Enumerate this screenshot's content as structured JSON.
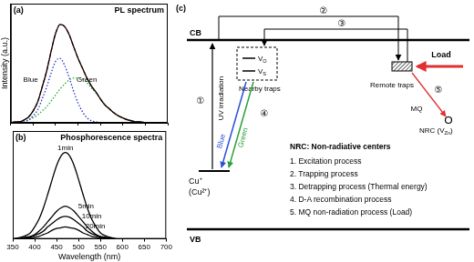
{
  "chart_data": [
    {
      "type": "line",
      "title": "PL spectrum",
      "annotations": [
        "(a)"
      ],
      "ylabel": "Intensity (a.u.)",
      "x": [
        350,
        360,
        370,
        380,
        390,
        400,
        410,
        420,
        430,
        440,
        450,
        460,
        470,
        480,
        490,
        500,
        510,
        520,
        530,
        540,
        550,
        560,
        570,
        580,
        590,
        600,
        610,
        620,
        630,
        640,
        650,
        660,
        670,
        680,
        690,
        700
      ],
      "xlim": [
        350,
        700
      ],
      "xticks": [
        350,
        400,
        450,
        500,
        550,
        600,
        650,
        700
      ],
      "ylim": [
        0,
        1.2
      ],
      "tick_labels": false,
      "grid": false,
      "series": [
        {
          "color": "#000000",
          "line_style": "solid",
          "values": [
            0,
            0.01,
            0.01,
            0.03,
            0.06,
            0.12,
            0.21,
            0.36,
            0.52,
            0.72,
            0.9,
            0.99,
            0.97,
            0.89,
            0.77,
            0.65,
            0.55,
            0.45,
            0.37,
            0.31,
            0.24,
            0.18,
            0.14,
            0.1,
            0.07,
            0.05,
            0.03,
            0.02,
            0.01,
            0.01,
            0,
            0,
            0,
            0,
            0,
            0
          ]
        },
        {
          "color": "#e02020",
          "line_style": "dashed",
          "values": [
            0,
            0.01,
            0.01,
            0.03,
            0.06,
            0.12,
            0.21,
            0.36,
            0.52,
            0.72,
            0.9,
            0.99,
            0.97,
            0.89,
            0.77,
            0.65,
            0.55,
            0.45,
            0.37,
            0.31,
            0.24,
            0.18,
            0.14,
            0.1,
            0.07,
            0.05,
            0.03,
            0.02,
            0.01,
            0.01,
            0,
            0,
            0,
            0,
            0,
            0
          ]
        },
        {
          "name": "Blue",
          "color": "#2233cc",
          "line_style": "dotted",
          "values": [
            0,
            0,
            0,
            0.01,
            0.03,
            0.07,
            0.13,
            0.24,
            0.36,
            0.5,
            0.62,
            0.65,
            0.58,
            0.46,
            0.32,
            0.2,
            0.11,
            0.05,
            0.02,
            0.01,
            0,
            0,
            0,
            0,
            0,
            0,
            0,
            0,
            0,
            0,
            0,
            0,
            0,
            0,
            0,
            0
          ]
        },
        {
          "name": "Green",
          "color": "#22aa33",
          "line_style": "dotted",
          "values": [
            0,
            0.01,
            0.01,
            0.02,
            0.03,
            0.05,
            0.08,
            0.12,
            0.16,
            0.22,
            0.28,
            0.34,
            0.39,
            0.43,
            0.45,
            0.45,
            0.44,
            0.4,
            0.35,
            0.3,
            0.24,
            0.18,
            0.14,
            0.1,
            0.07,
            0.05,
            0.03,
            0.02,
            0.01,
            0.01,
            0,
            0,
            0,
            0,
            0,
            0
          ]
        }
      ]
    },
    {
      "type": "line",
      "title": "Phosphorescence spectra",
      "annotations": [
        "(b)"
      ],
      "xlabel": "Wavelength (nm)",
      "x": [
        350,
        360,
        370,
        380,
        390,
        400,
        410,
        420,
        430,
        440,
        450,
        460,
        470,
        480,
        490,
        500,
        510,
        520,
        530,
        540,
        550,
        560,
        570,
        580,
        590,
        600,
        610,
        620,
        630,
        640,
        650,
        660,
        670,
        680,
        690,
        700
      ],
      "xlim": [
        350,
        700
      ],
      "xticks": [
        350,
        400,
        450,
        500,
        550,
        600,
        650,
        700
      ],
      "ylim": [
        0,
        1.25
      ],
      "tick_labels": "x",
      "grid": false,
      "series": [
        {
          "name": "1min",
          "color": "#000000",
          "line_style": "solid",
          "values": [
            0,
            0.01,
            0.02,
            0.04,
            0.07,
            0.14,
            0.23,
            0.36,
            0.52,
            0.69,
            0.85,
            0.96,
            1.0,
            0.96,
            0.85,
            0.69,
            0.52,
            0.36,
            0.23,
            0.14,
            0.07,
            0.04,
            0.02,
            0.01,
            0,
            0,
            0,
            0,
            0,
            0,
            0,
            0,
            0,
            0,
            0,
            0
          ]
        },
        {
          "name": "5min",
          "color": "#000000",
          "line_style": "solid",
          "values": [
            0,
            0,
            0.01,
            0.02,
            0.03,
            0.05,
            0.09,
            0.14,
            0.2,
            0.26,
            0.32,
            0.36,
            0.38,
            0.36,
            0.32,
            0.26,
            0.2,
            0.14,
            0.09,
            0.05,
            0.03,
            0.02,
            0.01,
            0,
            0,
            0,
            0,
            0,
            0,
            0,
            0,
            0,
            0,
            0,
            0,
            0
          ]
        },
        {
          "name": "10min",
          "color": "#000000",
          "line_style": "solid",
          "values": [
            0,
            0,
            0,
            0.01,
            0.02,
            0.04,
            0.06,
            0.09,
            0.14,
            0.18,
            0.22,
            0.25,
            0.26,
            0.25,
            0.22,
            0.18,
            0.14,
            0.09,
            0.06,
            0.04,
            0.02,
            0.01,
            0.01,
            0,
            0,
            0,
            0,
            0,
            0,
            0,
            0,
            0,
            0,
            0,
            0,
            0
          ]
        },
        {
          "name": "20min",
          "color": "#000000",
          "line_style": "solid",
          "values": [
            0,
            0,
            0,
            0.01,
            0.01,
            0.02,
            0.03,
            0.05,
            0.07,
            0.1,
            0.12,
            0.13,
            0.14,
            0.13,
            0.12,
            0.1,
            0.07,
            0.05,
            0.03,
            0.02,
            0.01,
            0.01,
            0,
            0,
            0,
            0,
            0,
            0,
            0,
            0,
            0,
            0,
            0,
            0,
            0,
            0
          ]
        }
      ]
    }
  ],
  "diagram": {
    "label": "(c)",
    "bands": [
      "CB",
      "VB"
    ],
    "center": [
      "Cu⁺",
      "(Cu²⁺)"
    ],
    "excitation": "UV irradiation",
    "steps": [
      "①",
      "②",
      "③",
      "④",
      "⑤"
    ],
    "nearby_traps": {
      "label": "Nearby traps",
      "levels": [
        [
          "V",
          "O"
        ],
        [
          "V",
          "S"
        ]
      ]
    },
    "remote_traps": "Remote traps",
    "emission": [
      "Blue",
      "Green"
    ],
    "load": "Load",
    "mq": "MQ",
    "nrc": [
      "NRC (V",
      "Zn",
      ")"
    ],
    "key": {
      "title": "NRC: Non-radiative centers",
      "items": [
        "1. Excitation process",
        "2. Trapping process",
        "3. Detrapping process (Thermal energy)",
        "4. D-A recombination process",
        "5. MQ non-radiation process (Load)"
      ]
    }
  }
}
